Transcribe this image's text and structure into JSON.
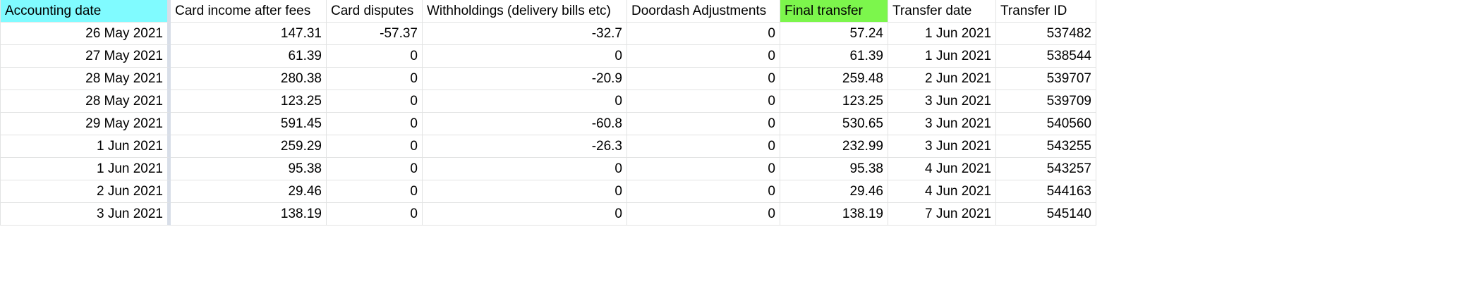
{
  "colors": {
    "accounting_header_bg": "#80fbff",
    "final_transfer_header_bg": "#7cf64c",
    "gridline": "#e2e3e3",
    "freeze_bar": "#d8dee8"
  },
  "headers": [
    "Accounting date",
    "Card income after fees",
    "Card disputes",
    "Withholdings (delivery bills etc)",
    "Doordash Adjustments",
    "Final transfer",
    "Transfer date",
    "Transfer ID"
  ],
  "rows": [
    [
      "26 May 2021",
      "147.31",
      "-57.37",
      "-32.7",
      "0",
      "57.24",
      "1 Jun 2021",
      "537482"
    ],
    [
      "27 May 2021",
      "61.39",
      "0",
      "0",
      "0",
      "61.39",
      "1 Jun 2021",
      "538544"
    ],
    [
      "28 May 2021",
      "280.38",
      "0",
      "-20.9",
      "0",
      "259.48",
      "2 Jun 2021",
      "539707"
    ],
    [
      "28 May 2021",
      "123.25",
      "0",
      "0",
      "0",
      "123.25",
      "3 Jun 2021",
      "539709"
    ],
    [
      "29 May 2021",
      "591.45",
      "0",
      "-60.8",
      "0",
      "530.65",
      "3 Jun 2021",
      "540560"
    ],
    [
      "1 Jun 2021",
      "259.29",
      "0",
      "-26.3",
      "0",
      "232.99",
      "3 Jun 2021",
      "543255"
    ],
    [
      "1 Jun 2021",
      "95.38",
      "0",
      "0",
      "0",
      "95.38",
      "4 Jun 2021",
      "543257"
    ],
    [
      "2 Jun 2021",
      "29.46",
      "0",
      "0",
      "0",
      "29.46",
      "4 Jun 2021",
      "544163"
    ],
    [
      "3 Jun 2021",
      "138.19",
      "0",
      "0",
      "0",
      "138.19",
      "7 Jun 2021",
      "545140"
    ]
  ]
}
